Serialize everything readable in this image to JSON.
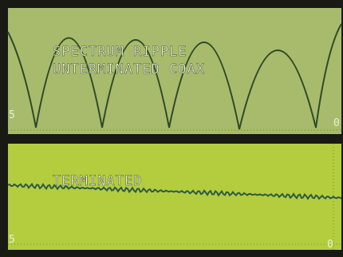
{
  "top_panel": {
    "title_lines": [
      "SPECTRUM RIPPLE",
      "UNTERMINATED COAX"
    ],
    "left_label": "5",
    "right_label": "0"
  },
  "bottom_panel": {
    "title": "TERMINATED",
    "left_label": "5",
    "right_label": "0"
  }
}
